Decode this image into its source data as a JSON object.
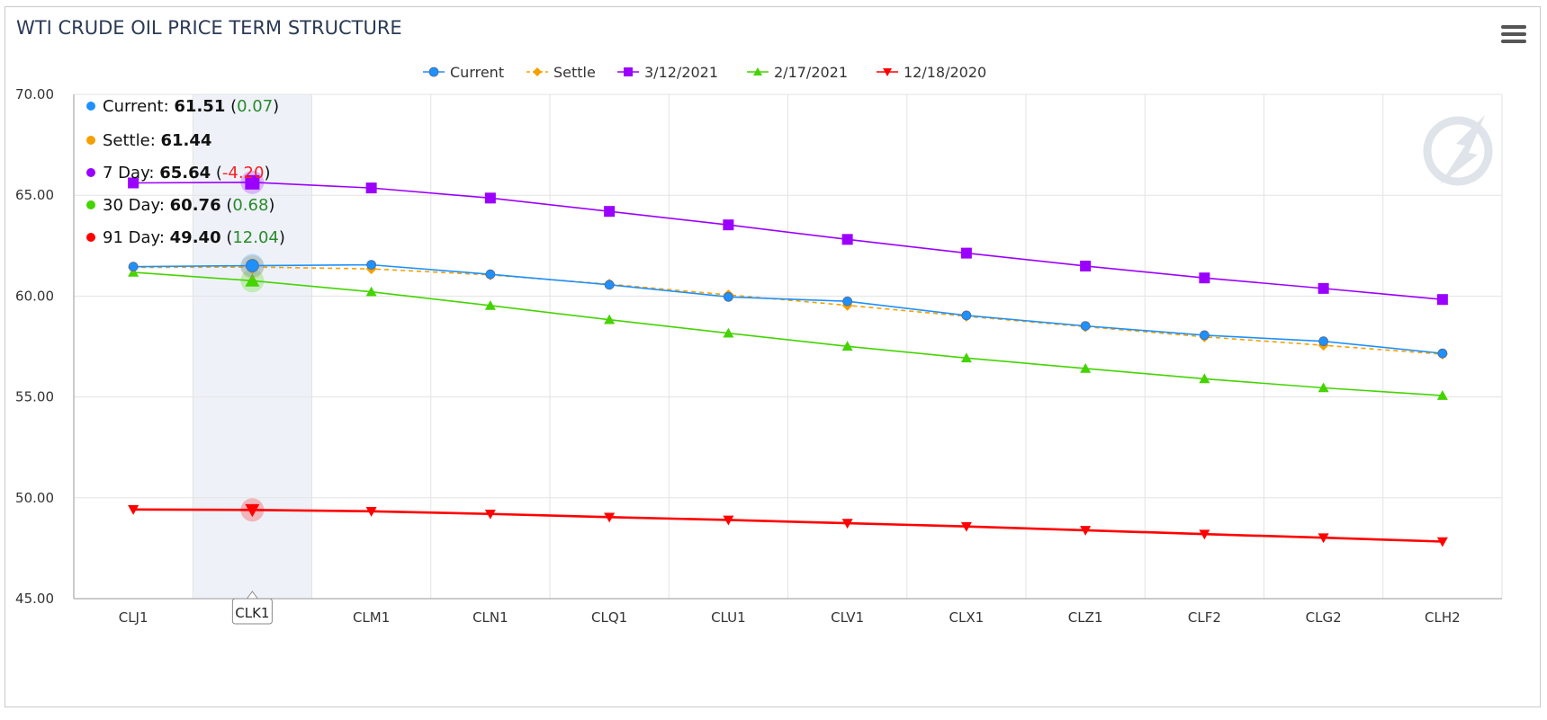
{
  "chart_data": {
    "type": "line",
    "title": "WTI CRUDE OIL PRICE TERM STRUCTURE",
    "xlabel": "",
    "ylabel": "",
    "categories": [
      "CLJ1",
      "CLK1",
      "CLM1",
      "CLN1",
      "CLQ1",
      "CLU1",
      "CLV1",
      "CLX1",
      "CLZ1",
      "CLF2",
      "CLG2",
      "CLH2"
    ],
    "ylim": [
      45,
      70
    ],
    "yticks": [
      "45.00",
      "50.00",
      "55.00",
      "60.00",
      "65.00",
      "70.00"
    ],
    "grid": true,
    "legend": "top-center",
    "highlighted_category": "CLK1",
    "series": [
      {
        "name": "Current",
        "color": "#1e90ff",
        "marker": "circle",
        "dash": false,
        "values": [
          61.46,
          61.51,
          61.55,
          61.08,
          60.56,
          59.96,
          59.74,
          59.04,
          58.52,
          58.06,
          57.76,
          57.16
        ]
      },
      {
        "name": "Settle",
        "color": "#f5a000",
        "marker": "diamond",
        "dash": true,
        "values": [
          61.42,
          61.44,
          61.35,
          61.05,
          60.59,
          60.06,
          59.54,
          59.0,
          58.48,
          57.98,
          57.56,
          57.12
        ]
      },
      {
        "name": "3/12/2021",
        "color": "#9b00ff",
        "marker": "square",
        "dash": false,
        "values": [
          65.61,
          65.64,
          65.36,
          64.86,
          64.2,
          63.53,
          62.81,
          62.13,
          61.49,
          60.9,
          60.38,
          59.83
        ]
      },
      {
        "name": "2/17/2021",
        "color": "#44d400",
        "marker": "triangle",
        "dash": false,
        "values": [
          61.18,
          60.76,
          60.21,
          59.53,
          58.83,
          58.16,
          57.51,
          56.93,
          56.41,
          55.9,
          55.45,
          55.07
        ]
      },
      {
        "name": "12/18/2020",
        "color": "#ff0000",
        "marker": "triangle-down",
        "dash": false,
        "values": [
          49.42,
          49.4,
          49.33,
          49.2,
          49.04,
          48.9,
          48.74,
          48.58,
          48.39,
          48.2,
          48.02,
          47.83
        ]
      }
    ]
  },
  "tooltip": {
    "rows": [
      {
        "label": "Current: ",
        "value": "61.51",
        "change": "0.07",
        "color": "#1e90ff",
        "change_color": "#2a8a2a"
      },
      {
        "label": "Settle: ",
        "value": "61.44",
        "change": "",
        "color": "#f5a000",
        "change_color": "#2a8a2a"
      },
      {
        "label": "7 Day: ",
        "value": "65.64",
        "change": "-4.20",
        "color": "#9b00ff",
        "change_color": "#ff2020"
      },
      {
        "label": "30 Day: ",
        "value": "60.76",
        "change": "0.68",
        "color": "#44d400",
        "change_color": "#2a8a2a"
      },
      {
        "label": "91 Day: ",
        "value": "49.40",
        "change": "12.04",
        "color": "#ff0000",
        "change_color": "#2a8a2a"
      }
    ]
  },
  "menu_icon": "hamburger-menu-icon",
  "watermark_icon": "quote-logo-icon"
}
